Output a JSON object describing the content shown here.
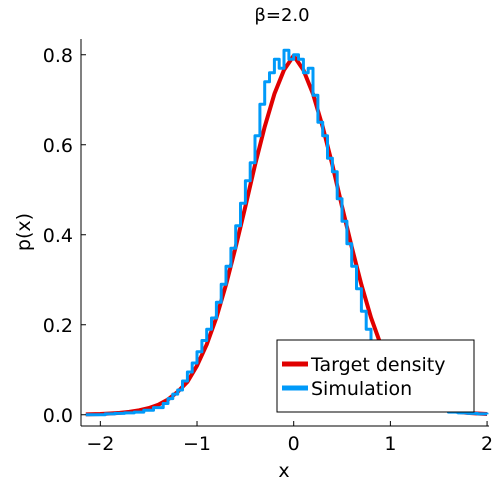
{
  "chart_data": {
    "type": "line",
    "title": "β=2.0",
    "xlabel": "x",
    "ylabel": "p(x)",
    "xlim": [
      -2.2,
      2.02
    ],
    "ylim": [
      -0.025,
      0.835
    ],
    "xticks": [
      -2,
      -1,
      0,
      1,
      2
    ],
    "xtick_labels": [
      "−2",
      "−1",
      "0",
      "1",
      "2"
    ],
    "yticks": [
      0.0,
      0.2,
      0.4,
      0.6,
      0.8
    ],
    "ytick_labels": [
      "0.0",
      "0.2",
      "0.4",
      "0.6",
      "0.8"
    ],
    "grid": false,
    "legend_position": "bottom-right",
    "series": [
      {
        "name": "Target density",
        "color": "#e00000",
        "kind": "line",
        "x": [
          -2.15,
          -2.0,
          -1.9,
          -1.8,
          -1.7,
          -1.6,
          -1.5,
          -1.4,
          -1.3,
          -1.2,
          -1.1,
          -1.0,
          -0.9,
          -0.8,
          -0.7,
          -0.6,
          -0.5,
          -0.4,
          -0.3,
          -0.2,
          -0.1,
          0.0,
          0.1,
          0.2,
          0.3,
          0.4,
          0.5,
          0.6,
          0.7,
          0.8,
          0.9,
          1.0,
          1.1,
          1.2,
          1.3,
          1.4,
          1.5,
          1.6,
          1.7,
          1.8,
          1.9,
          2.0
        ],
        "y": [
          0.0008,
          0.0017,
          0.0027,
          0.004,
          0.0063,
          0.0098,
          0.0148,
          0.0222,
          0.0338,
          0.051,
          0.073,
          0.109,
          0.156,
          0.216,
          0.289,
          0.373,
          0.463,
          0.555,
          0.64,
          0.713,
          0.766,
          0.798,
          0.766,
          0.713,
          0.64,
          0.555,
          0.463,
          0.373,
          0.289,
          0.216,
          0.156,
          0.109,
          0.073,
          0.051,
          0.0338,
          0.0222,
          0.0148,
          0.0098,
          0.0063,
          0.004,
          0.0027,
          0.0017
        ]
      },
      {
        "name": "Simulation",
        "color": "#009af9",
        "kind": "step",
        "x": [
          -2.15,
          -1.95,
          -1.85,
          -1.75,
          -1.65,
          -1.55,
          -1.45,
          -1.35,
          -1.3,
          -1.25,
          -1.2,
          -1.15,
          -1.1,
          -1.05,
          -1.0,
          -0.95,
          -0.9,
          -0.85,
          -0.8,
          -0.75,
          -0.7,
          -0.65,
          -0.6,
          -0.55,
          -0.5,
          -0.45,
          -0.4,
          -0.35,
          -0.3,
          -0.25,
          -0.2,
          -0.15,
          -0.1,
          -0.05,
          0.0,
          0.05,
          0.1,
          0.15,
          0.2,
          0.25,
          0.3,
          0.35,
          0.4,
          0.45,
          0.5,
          0.55,
          0.6,
          0.65,
          0.7,
          0.75,
          0.8,
          0.85,
          0.9,
          0.95,
          1.0,
          1.1,
          1.2,
          1.3,
          1.4,
          1.5,
          1.6,
          1.7,
          1.8,
          1.9,
          2.0
        ],
        "y": [
          0.0,
          0.002,
          0.003,
          0.004,
          0.006,
          0.01,
          0.016,
          0.025,
          0.036,
          0.046,
          0.055,
          0.075,
          0.095,
          0.115,
          0.14,
          0.165,
          0.19,
          0.215,
          0.25,
          0.29,
          0.33,
          0.37,
          0.42,
          0.47,
          0.52,
          0.56,
          0.62,
          0.69,
          0.74,
          0.76,
          0.79,
          0.77,
          0.81,
          0.79,
          0.8,
          0.79,
          0.76,
          0.77,
          0.71,
          0.65,
          0.62,
          0.57,
          0.54,
          0.48,
          0.43,
          0.38,
          0.33,
          0.28,
          0.23,
          0.19,
          0.155,
          0.12,
          0.09,
          0.07,
          0.05,
          0.035,
          0.025,
          0.018,
          0.012,
          0.009,
          0.006,
          0.004,
          0.003,
          0.002,
          0.001
        ]
      }
    ]
  }
}
